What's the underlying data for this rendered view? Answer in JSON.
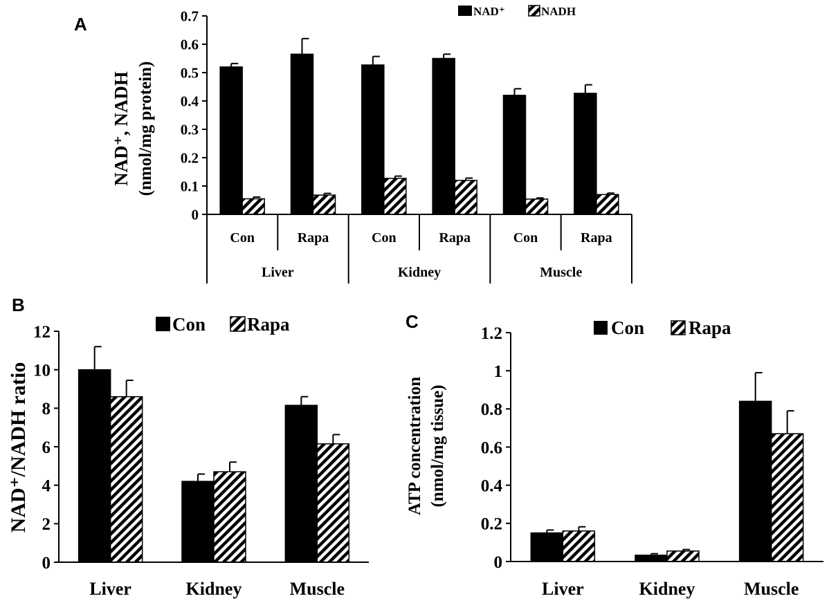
{
  "chart_data": [
    {
      "panel": "A",
      "type": "bar",
      "ylabel_line1": "NAD⁺, NADH",
      "ylabel_line2": "(nmol/mg protein)",
      "ylim": [
        0,
        0.7
      ],
      "yticks": [
        "0",
        "0.1",
        "0.2",
        "0.3",
        "0.4",
        "0.5",
        "0.6",
        "0.7"
      ],
      "legend_position": "top-right",
      "groups": [
        {
          "label": "Liver",
          "categories": [
            "Con",
            "Rapa"
          ]
        },
        {
          "label": "Kidney",
          "categories": [
            "Con",
            "Rapa"
          ]
        },
        {
          "label": "Muscle",
          "categories": [
            "Con",
            "Rapa"
          ]
        }
      ],
      "categories": [
        "Con",
        "Rapa",
        "Con",
        "Rapa",
        "Con",
        "Rapa"
      ],
      "series": [
        {
          "name": "NAD⁺",
          "pattern": "solid",
          "values": [
            0.52,
            0.565,
            0.527,
            0.55,
            0.42,
            0.427
          ],
          "errors": [
            0.012,
            0.055,
            0.03,
            0.015,
            0.023,
            0.03
          ]
        },
        {
          "name": "NADH",
          "pattern": "hatched",
          "values": [
            0.055,
            0.068,
            0.127,
            0.12,
            0.054,
            0.07
          ],
          "errors": [
            0.006,
            0.006,
            0.008,
            0.008,
            0.004,
            0.005
          ]
        }
      ]
    },
    {
      "panel": "B",
      "type": "bar",
      "ylabel": "NAD⁺/NADH ratio",
      "ylim": [
        0,
        12
      ],
      "yticks": [
        "0",
        "2",
        "4",
        "6",
        "8",
        "10",
        "12"
      ],
      "legend_position": "top-center",
      "categories": [
        "Liver",
        "Kidney",
        "Muscle"
      ],
      "series": [
        {
          "name": "Con",
          "pattern": "solid",
          "values": [
            10.0,
            4.2,
            8.15
          ],
          "errors": [
            1.2,
            0.38,
            0.45
          ]
        },
        {
          "name": "Rapa",
          "pattern": "hatched",
          "values": [
            8.6,
            4.7,
            6.15
          ],
          "errors": [
            0.85,
            0.5,
            0.48
          ]
        }
      ]
    },
    {
      "panel": "C",
      "type": "bar",
      "ylabel_line1": "ATP concentration",
      "ylabel_line2": "(nmol/mg tissue)",
      "ylim": [
        0,
        1.2
      ],
      "yticks": [
        "0",
        "0.2",
        "0.4",
        "0.6",
        "0.8",
        "1",
        "1.2"
      ],
      "legend_position": "top-center",
      "categories": [
        "Liver",
        "Kidney",
        "Muscle"
      ],
      "series": [
        {
          "name": "Con",
          "pattern": "solid",
          "values": [
            0.15,
            0.033,
            0.84
          ],
          "errors": [
            0.015,
            0.008,
            0.15
          ]
        },
        {
          "name": "Rapa",
          "pattern": "hatched",
          "values": [
            0.16,
            0.055,
            0.67
          ],
          "errors": [
            0.022,
            0.008,
            0.12
          ]
        }
      ]
    }
  ]
}
